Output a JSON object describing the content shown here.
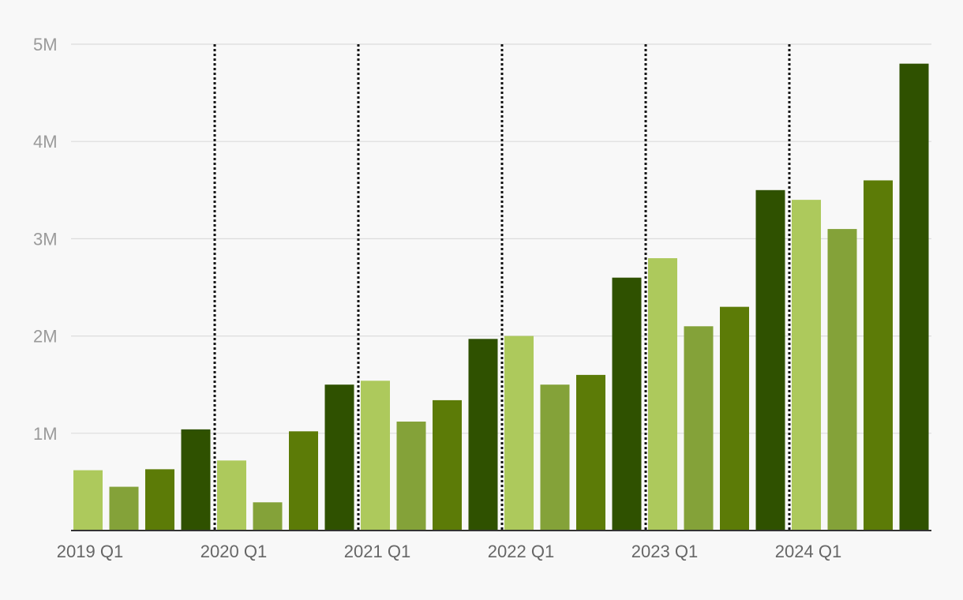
{
  "chart_data": {
    "type": "bar",
    "title": "",
    "xlabel": "",
    "ylabel": "",
    "ylim": [
      0,
      5000000
    ],
    "y_ticks": [
      {
        "value": 1000000,
        "label": "1M"
      },
      {
        "value": 2000000,
        "label": "2M"
      },
      {
        "value": 3000000,
        "label": "3M"
      },
      {
        "value": 4000000,
        "label": "4M"
      },
      {
        "value": 5000000,
        "label": "5M"
      }
    ],
    "grid": true,
    "legend": "none",
    "year_separators": true,
    "x_tick_labels": [
      "2019 Q1",
      "2020 Q1",
      "2021 Q1",
      "2022 Q1",
      "2023 Q1",
      "2024 Q1"
    ],
    "categories": [
      "2019 Q1",
      "2019 Q2",
      "2019 Q3",
      "2019 Q4",
      "2020 Q1",
      "2020 Q2",
      "2020 Q3",
      "2020 Q4",
      "2021 Q1",
      "2021 Q2",
      "2021 Q3",
      "2021 Q4",
      "2022 Q1",
      "2022 Q2",
      "2022 Q3",
      "2022 Q4",
      "2023 Q1",
      "2023 Q2",
      "2023 Q3",
      "2023 Q4",
      "2024 Q1",
      "2024 Q2",
      "2024 Q3",
      "2024 Q4"
    ],
    "values": [
      620000,
      450000,
      630000,
      1040000,
      720000,
      290000,
      1020000,
      1500000,
      1540000,
      1120000,
      1340000,
      1970000,
      2000000,
      1500000,
      1600000,
      2600000,
      2800000,
      2100000,
      2300000,
      3500000,
      3400000,
      3100000,
      3600000,
      4800000
    ],
    "quarter_colors": [
      "#adc95c",
      "#84a239",
      "#5c7b07",
      "#2f5100"
    ]
  }
}
